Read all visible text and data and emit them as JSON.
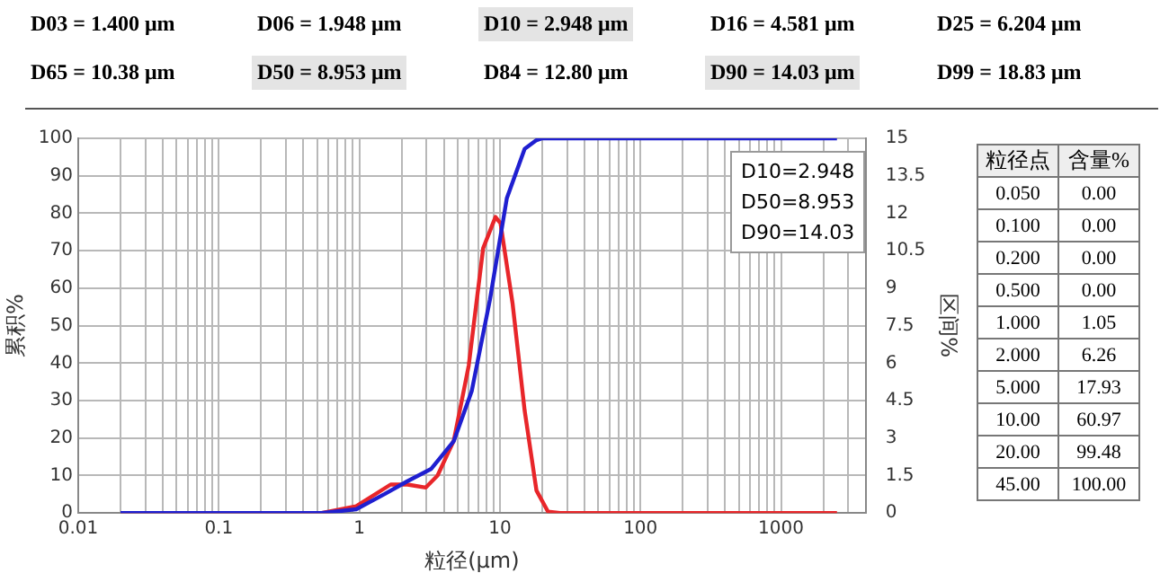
{
  "chart_data": {
    "type": "line",
    "xlabel": "粒径(μm)",
    "ylabel": "累积%",
    "y2label": "区间%",
    "log": "x",
    "grid": true,
    "legend": false,
    "marker": "none",
    "line_style": "solid",
    "xlim": [
      0.01,
      4000
    ],
    "ylim": [
      0,
      100
    ],
    "y2lim": [
      0,
      15
    ],
    "xticks": [
      0.01,
      {
        "value": 0.02,
        "label": null
      },
      {
        "value": 0.03,
        "label": null
      },
      {
        "value": 0.04,
        "label": null
      },
      {
        "value": 0.05,
        "label": null
      },
      {
        "value": 0.06,
        "label": null
      },
      {
        "value": 0.07,
        "label": null
      },
      {
        "value": 0.08,
        "label": null
      },
      {
        "value": 0.09,
        "label": null
      },
      0.1,
      {
        "value": 0.2,
        "label": null
      },
      {
        "value": 0.3,
        "label": null
      },
      {
        "value": 0.4,
        "label": null
      },
      {
        "value": 0.5,
        "label": null
      },
      {
        "value": 0.6,
        "label": null
      },
      {
        "value": 0.7,
        "label": null
      },
      {
        "value": 0.8,
        "label": null
      },
      {
        "value": 0.9,
        "label": null
      },
      1,
      {
        "value": 2,
        "label": null
      },
      {
        "value": 3,
        "label": null
      },
      {
        "value": 4,
        "label": null
      },
      {
        "value": 5,
        "label": null
      },
      {
        "value": 6,
        "label": null
      },
      {
        "value": 7,
        "label": null
      },
      {
        "value": 8,
        "label": null
      },
      {
        "value": 9,
        "label": null
      },
      10,
      {
        "value": 20,
        "label": null
      },
      {
        "value": 30,
        "label": null
      },
      {
        "value": 40,
        "label": null
      },
      {
        "value": 50,
        "label": null
      },
      {
        "value": 60,
        "label": null
      },
      {
        "value": 70,
        "label": null
      },
      {
        "value": 80,
        "label": null
      },
      {
        "value": 90,
        "label": null
      },
      100,
      {
        "value": 200,
        "label": null
      },
      {
        "value": 300,
        "label": null
      },
      {
        "value": 400,
        "label": null
      },
      {
        "value": 500,
        "label": null
      },
      {
        "value": 600,
        "label": null
      },
      {
        "value": 700,
        "label": null
      },
      {
        "value": 800,
        "label": null
      },
      {
        "value": 900,
        "label": null
      },
      1000,
      {
        "value": 2000,
        "label": null
      },
      {
        "value": 3000,
        "label": null
      }
    ],
    "yticks": [
      0,
      10,
      20,
      30,
      40,
      50,
      60,
      70,
      80,
      90,
      100
    ],
    "y2ticks": [
      0,
      1.5,
      3,
      4.5,
      6,
      7.5,
      9,
      10.5,
      12,
      13.5,
      15
    ],
    "series": [
      {
        "color": "#1f1fd0",
        "x": [
          0.02,
          0.54,
          0.95,
          1.52,
          2.2,
          3.25,
          4.7,
          6.3,
          8.5,
          11.2,
          15,
          18.2,
          20,
          2500
        ],
        "values": [
          0,
          0,
          1,
          5.1,
          8.5,
          11.8,
          19.2,
          32.5,
          57,
          84,
          97.2,
          99.5,
          100,
          100
        ]
      },
      {
        "color": "#e8262a",
        "axis": "y2",
        "x": [
          0.02,
          0.54,
          0.95,
          1.67,
          2.2,
          2.97,
          3.6,
          4.7,
          6,
          7.6,
          9.3,
          10.1,
          12.3,
          15,
          18.2,
          22,
          26.8,
          2500
        ],
        "values": [
          0,
          0,
          0.27,
          1.14,
          1.14,
          1.02,
          1.5,
          2.9,
          5.9,
          10.6,
          11.85,
          11.6,
          8.4,
          4.1,
          0.9,
          0.05,
          0,
          0
        ]
      }
    ],
    "annotations": [
      "D03 = 1.400  μm",
      "D06 = 1.948  μm",
      "D10 = 2.948  μm",
      "D16 = 4.581  μm",
      "D25 = 6.204  μm",
      "D65 = 10.38  μm",
      "D50 = 8.953  μm",
      "D84 = 12.80  μm",
      "D90 = 14.03  μm",
      "D99 = 18.83  μm",
      "D10=2.948",
      "D50=8.953",
      "D90=14.03",
      "粒径点",
      "含量%",
      "0.050",
      "0.00",
      "0.100",
      "0.00",
      "0.200",
      "0.00",
      "0.500",
      "0.00",
      "1.000",
      "1.05",
      "2.000",
      "6.26",
      "5.000",
      "17.93",
      "10.00",
      "60.97",
      "20.00",
      "99.48",
      "45.00",
      "100.00"
    ]
  }
}
